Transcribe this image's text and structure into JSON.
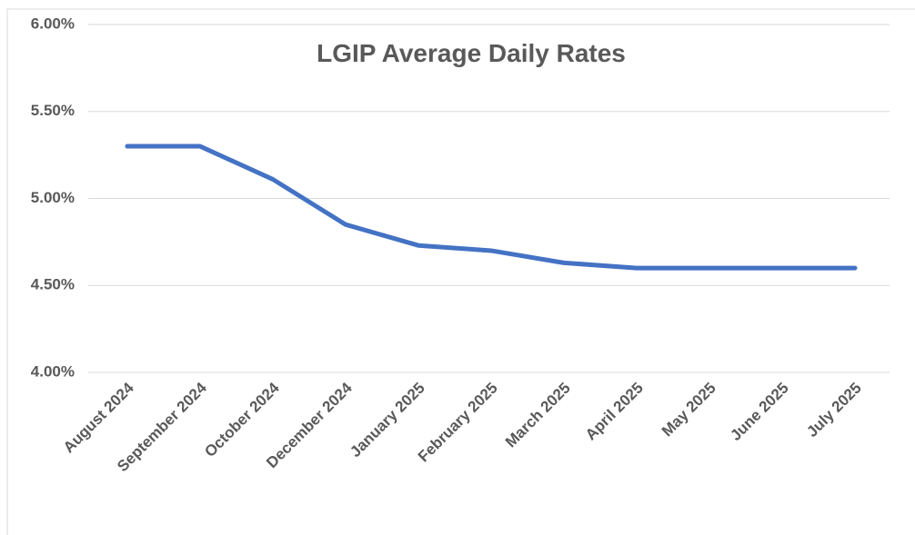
{
  "chart_data": {
    "type": "line",
    "title": "LGIP Average Daily Rates",
    "categories": [
      "August 2024",
      "September 2024",
      "October 2024",
      "December 2024",
      "January 2025",
      "February 2025",
      "March 2025",
      "April 2025",
      "May 2025",
      "June 2025",
      "July 2025"
    ],
    "series": [
      {
        "name": "LGIP Average Daily Rate",
        "color": "#4472c4",
        "values": [
          5.3,
          5.3,
          5.11,
          4.85,
          4.73,
          4.7,
          4.63,
          4.6,
          4.6,
          4.6,
          4.6
        ]
      }
    ],
    "ylim": [
      4,
      6
    ],
    "yticks": [
      {
        "value": 4,
        "label": "4.00%"
      },
      {
        "value": 4.5,
        "label": "4.50%"
      },
      {
        "value": 5,
        "label": "5.00%"
      },
      {
        "value": 5.5,
        "label": "5.50%"
      },
      {
        "value": 6,
        "label": "6.00%"
      }
    ],
    "grid": true
  }
}
